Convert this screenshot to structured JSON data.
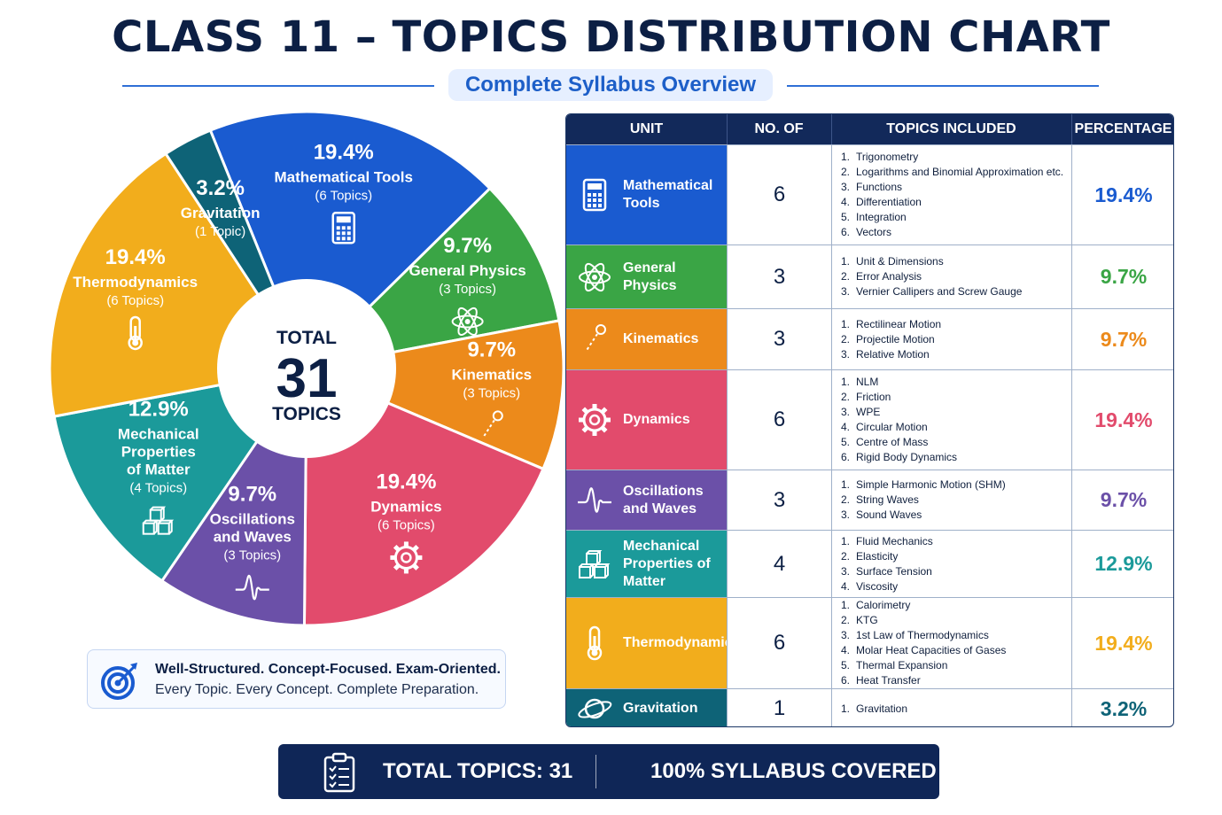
{
  "title": "CLASS 11 – TOPICS DISTRIBUTION CHART",
  "subtitle": "Complete Syllabus Overview",
  "center": {
    "top": "TOTAL",
    "number": "31",
    "bottom": "TOPICS"
  },
  "chart_data": {
    "type": "pie",
    "title": "CLASS 11 – TOPICS DISTRIBUTION CHART",
    "total": 31,
    "slices": [
      {
        "label": "Mathematical Tools",
        "value": 6,
        "percent": "19.4%",
        "count_label": "(6 Topics)",
        "color": "#1a5bd0",
        "icon": "calculator-icon"
      },
      {
        "label": "General Physics",
        "value": 3,
        "percent": "9.7%",
        "count_label": "(3 Topics)",
        "color": "#3aa545",
        "icon": "atom-icon"
      },
      {
        "label": "Kinematics",
        "value": 3,
        "percent": "9.7%",
        "count_label": "(3 Topics)",
        "color": "#ec8a1b",
        "icon": "trajectory-icon"
      },
      {
        "label": "Dynamics",
        "value": 6,
        "percent": "19.4%",
        "count_label": "(6 Topics)",
        "color": "#e24b6c",
        "icon": "gear-icon"
      },
      {
        "label": "Oscillations and Waves",
        "value": 3,
        "percent": "9.7%",
        "count_label": "(3 Topics)",
        "color": "#6b50a8",
        "icon": "wave-icon"
      },
      {
        "label": "Mechanical Properties of Matter",
        "value": 4,
        "percent": "12.9%",
        "count_label": "(4 Topics)",
        "color": "#1b9a9a",
        "icon": "cubes-icon"
      },
      {
        "label": "Thermodynamics",
        "value": 6,
        "percent": "19.4%",
        "count_label": "(6 Topics)",
        "color": "#f2ad1c",
        "icon": "thermometer-icon"
      },
      {
        "label": "Gravitation",
        "value": 1,
        "percent": "3.2%",
        "count_label": "(1 Topic)",
        "color": "#0e6377",
        "icon": null
      }
    ]
  },
  "table": {
    "headers": {
      "unit": "UNIT",
      "count": "NO. OF TOPICS",
      "topics": "TOPICS INCLUDED",
      "percent": "PERCENTAGE"
    },
    "rows": [
      {
        "unit": "Mathematical Tools",
        "count": "6",
        "percent": "19.4%",
        "color": "#1a5bd0",
        "icon": "calculator-icon",
        "topics": [
          "Trigonometry",
          "Logarithms and Binomial Approximation etc.",
          "Functions",
          "Differentiation",
          "Integration",
          "Vectors"
        ]
      },
      {
        "unit": "General Physics",
        "count": "3",
        "percent": "9.7%",
        "color": "#3aa545",
        "icon": "atom-icon",
        "topics": [
          "Unit & Dimensions",
          "Error Analysis",
          "Vernier Callipers and Screw Gauge"
        ]
      },
      {
        "unit": "Kinematics",
        "count": "3",
        "percent": "9.7%",
        "color": "#ec8a1b",
        "icon": "trajectory-icon",
        "topics": [
          "Rectilinear Motion",
          "Projectile Motion",
          "Relative Motion"
        ]
      },
      {
        "unit": "Dynamics",
        "count": "6",
        "percent": "19.4%",
        "color": "#e24b6c",
        "icon": "gear-icon",
        "topics": [
          "NLM",
          "Friction",
          "WPE",
          "Circular Motion",
          "Centre of Mass",
          "Rigid Body Dynamics"
        ]
      },
      {
        "unit": "Oscillations and Waves",
        "count": "3",
        "percent": "9.7%",
        "color": "#6b50a8",
        "icon": "wave-icon",
        "topics": [
          "Simple Harmonic Motion (SHM)",
          "String Waves",
          "Sound Waves"
        ]
      },
      {
        "unit": "Mechanical Properties of Matter",
        "count": "4",
        "percent": "12.9%",
        "color": "#1b9a9a",
        "icon": "cubes-icon",
        "topics": [
          "Fluid Mechanics",
          "Elasticity",
          "Surface Tension",
          "Viscosity"
        ]
      },
      {
        "unit": "Thermodynamics",
        "count": "6",
        "percent": "19.4%",
        "color": "#f2ad1c",
        "icon": "thermometer-icon",
        "topics": [
          "Calorimetry",
          "KTG",
          "1st Law of Thermodynamics",
          "Molar Heat Capacities of Gases",
          "Thermal Expansion",
          "Heat Transfer"
        ]
      },
      {
        "unit": "Gravitation",
        "count": "1",
        "percent": "3.2%",
        "color": "#0e6377",
        "icon": "planet-icon",
        "topics": [
          "Gravitation"
        ]
      }
    ]
  },
  "tagline": {
    "line1": "Well-Structured. Concept-Focused. Exam-Oriented.",
    "line2": "Every Topic. Every Concept. Complete Preparation."
  },
  "footer": {
    "total": "TOTAL TOPICS:  31",
    "covered": "100% SYLLABUS COVERED"
  }
}
